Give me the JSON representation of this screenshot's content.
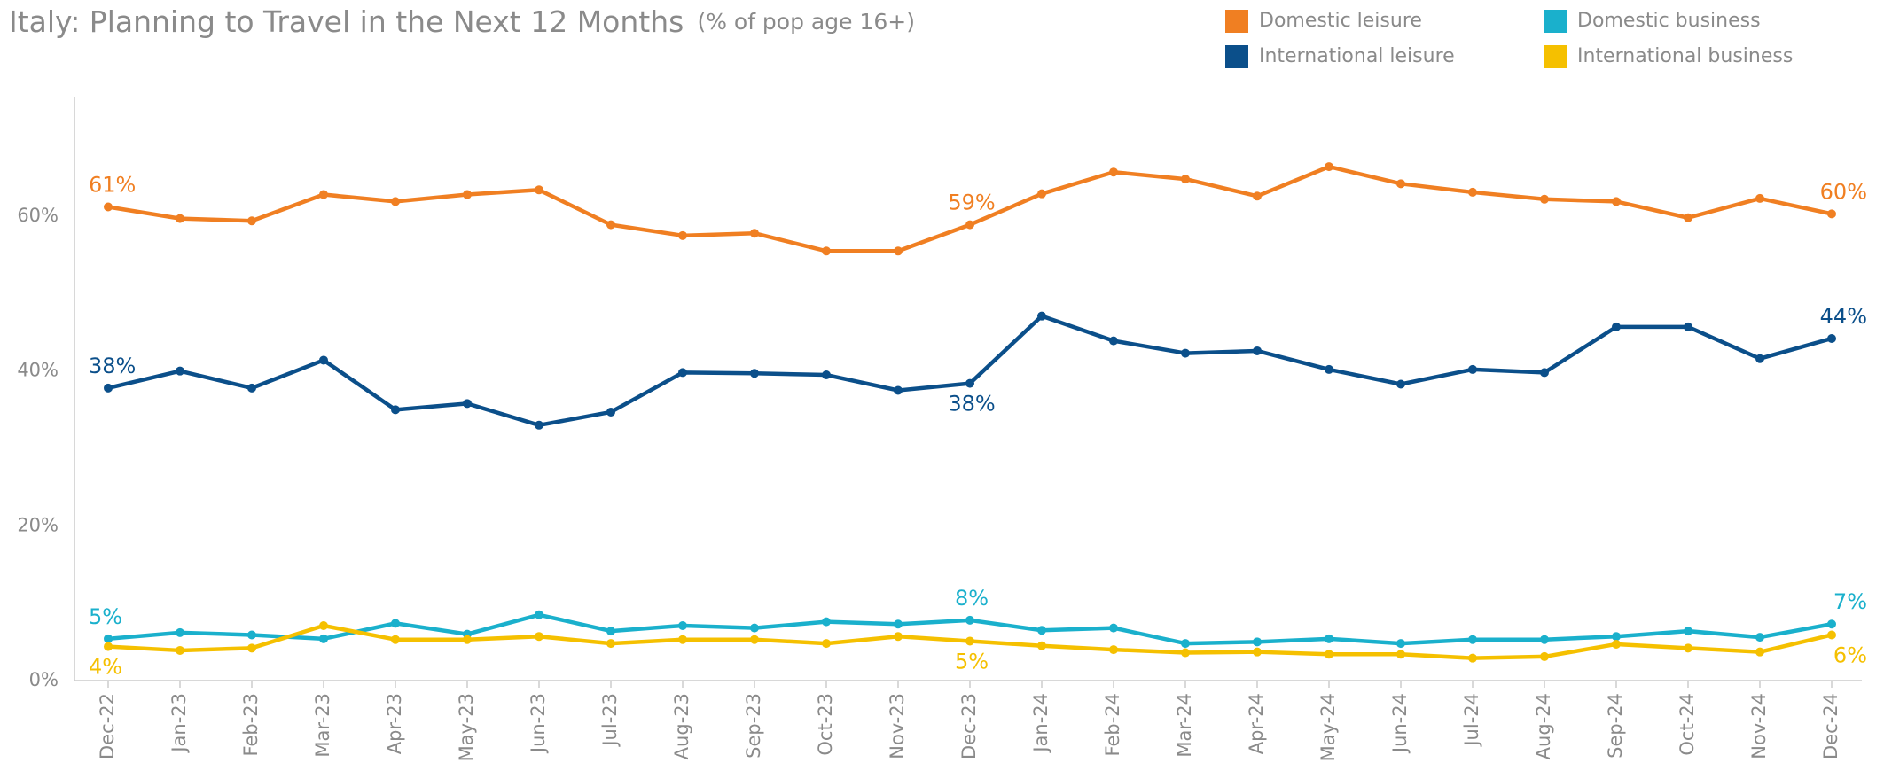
{
  "chart_data": {
    "type": "line",
    "title": "Italy: Planning to Travel in the Next 12 Months",
    "subtitle": "(% of pop age 16+)",
    "categories": [
      "Dec-22",
      "Jan-23",
      "Feb-23",
      "Mar-23",
      "Apr-23",
      "May-23",
      "Jun-23",
      "Jul-23",
      "Aug-23",
      "Sep-23",
      "Oct-23",
      "Nov-23",
      "Dec-23",
      "Jan-24",
      "Feb-24",
      "Mar-24",
      "Apr-24",
      "May-24",
      "Jun-24",
      "Jul-24",
      "Aug-24",
      "Sep-24",
      "Oct-24",
      "Nov-24",
      "Dec-24"
    ],
    "series": [
      {
        "name": "Domestic leisure",
        "color": "#f07f22",
        "values": [
          61.2,
          59.7,
          59.4,
          62.8,
          61.9,
          62.8,
          63.4,
          58.9,
          57.5,
          57.8,
          55.5,
          55.5,
          58.9,
          62.9,
          65.7,
          64.8,
          62.6,
          66.4,
          64.2,
          63.1,
          62.2,
          61.9,
          59.8,
          62.3,
          60.3
        ],
        "value_labels": [
          "61%",
          null,
          null,
          null,
          null,
          null,
          null,
          null,
          null,
          null,
          null,
          null,
          "59%",
          null,
          null,
          null,
          null,
          null,
          null,
          null,
          null,
          null,
          null,
          null,
          "60%"
        ]
      },
      {
        "name": "Domestic business",
        "color": "#1ab0cc",
        "values": [
          5.4,
          6.2,
          5.9,
          5.4,
          7.4,
          6.0,
          8.5,
          6.4,
          7.1,
          6.8,
          7.6,
          7.3,
          7.8,
          6.5,
          6.8,
          4.8,
          5.0,
          5.4,
          4.8,
          5.3,
          5.3,
          5.7,
          6.4,
          5.6,
          7.3
        ],
        "value_labels": [
          "5%",
          null,
          null,
          null,
          null,
          null,
          null,
          null,
          null,
          null,
          null,
          null,
          "8%",
          null,
          null,
          null,
          null,
          null,
          null,
          null,
          null,
          null,
          null,
          null,
          "7%"
        ]
      },
      {
        "name": "International leisure",
        "color": "#0b4f8a",
        "values": [
          37.8,
          40.0,
          37.8,
          41.4,
          35.0,
          35.8,
          33.0,
          34.7,
          39.8,
          39.7,
          39.5,
          37.5,
          38.4,
          47.1,
          43.9,
          42.3,
          42.6,
          40.2,
          38.3,
          40.2,
          39.8,
          45.7,
          45.7,
          41.6,
          44.2
        ],
        "value_labels": [
          "38%",
          null,
          null,
          null,
          null,
          null,
          null,
          null,
          null,
          null,
          null,
          null,
          "38%",
          null,
          null,
          null,
          null,
          null,
          null,
          null,
          null,
          null,
          null,
          null,
          "44%"
        ]
      },
      {
        "name": "International business",
        "color": "#f5c000",
        "values": [
          4.4,
          3.9,
          4.2,
          7.1,
          5.3,
          5.3,
          5.7,
          4.8,
          5.3,
          5.3,
          4.8,
          5.7,
          5.1,
          4.5,
          4.0,
          3.6,
          3.7,
          3.4,
          3.4,
          2.9,
          3.1,
          4.7,
          4.2,
          3.7,
          5.9
        ],
        "value_labels": [
          "4%",
          null,
          null,
          null,
          null,
          null,
          null,
          null,
          null,
          null,
          null,
          null,
          "5%",
          null,
          null,
          null,
          null,
          null,
          null,
          null,
          null,
          null,
          null,
          null,
          "6%"
        ]
      }
    ],
    "ylim": [
      0,
      75
    ],
    "yticks": [
      {
        "value": 0,
        "label": "0%"
      },
      {
        "value": 20,
        "label": "20%"
      },
      {
        "value": 40,
        "label": "40%"
      },
      {
        "value": 60,
        "label": "60%"
      }
    ]
  }
}
